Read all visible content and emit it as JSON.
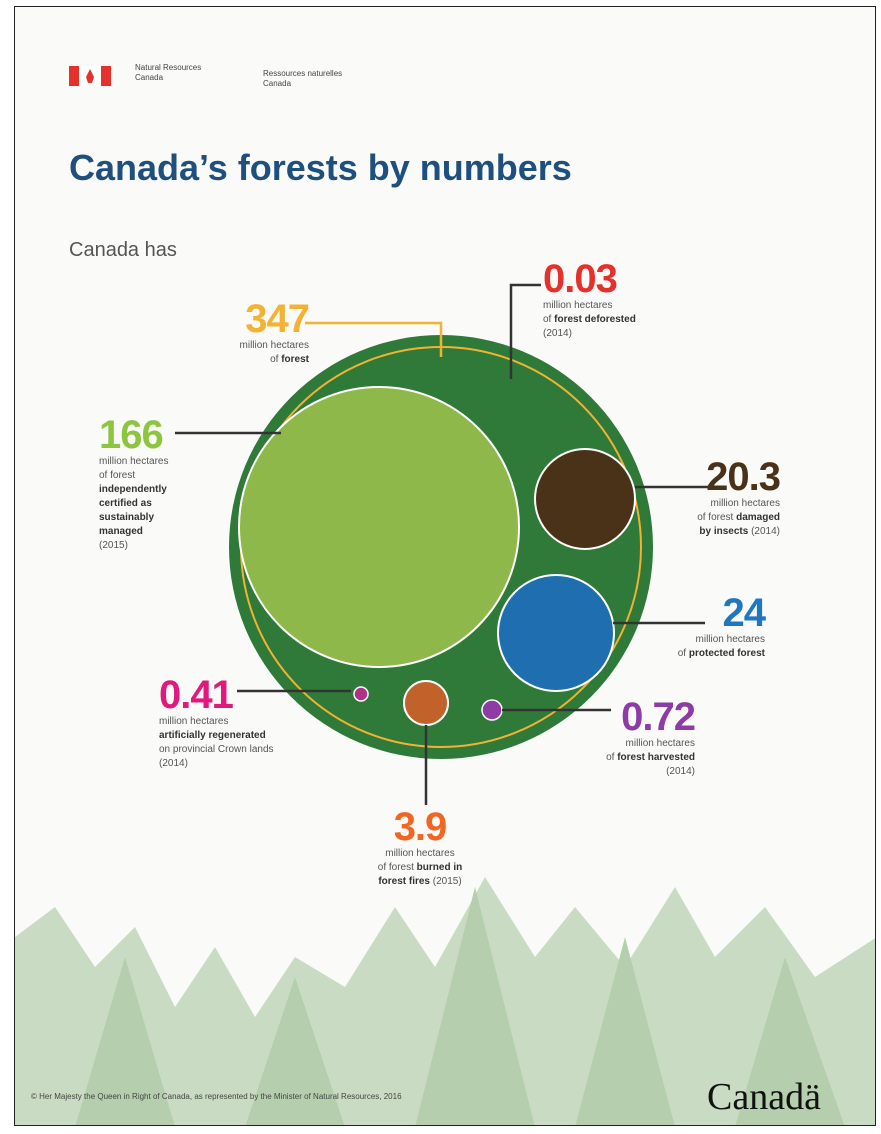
{
  "header": {
    "dept_en": [
      "Natural Resources",
      "Canada"
    ],
    "dept_fr": [
      "Ressources naturelles",
      "Canada"
    ]
  },
  "title": "Canada’s forests by numbers",
  "intro": "Canada has",
  "stats": [
    {
      "value": 347,
      "color": "#f2b233",
      "lines": [
        [
          {
            "text": "million hectares",
            "bold": false
          }
        ],
        [
          {
            "text": "of ",
            "bold": false
          },
          {
            "text": "forest",
            "bold": true
          }
        ]
      ]
    },
    {
      "value": 0.03,
      "color": "#e4312b",
      "lines": [
        [
          {
            "text": "million hectares",
            "bold": false
          }
        ],
        [
          {
            "text": "of ",
            "bold": false
          },
          {
            "text": "forest deforested",
            "bold": true
          }
        ],
        [
          {
            "text": "(2014)",
            "bold": false
          }
        ]
      ]
    },
    {
      "value": 166,
      "color": "#8cc63f",
      "lines": [
        [
          {
            "text": "million hectares",
            "bold": false
          }
        ],
        [
          {
            "text": "of forest",
            "bold": false
          }
        ],
        [
          {
            "text": "independently",
            "bold": true
          }
        ],
        [
          {
            "text": "certified as",
            "bold": true
          }
        ],
        [
          {
            "text": "sustainably",
            "bold": true
          }
        ],
        [
          {
            "text": "managed",
            "bold": true
          }
        ],
        [
          {
            "text": "(2015)",
            "bold": false
          }
        ]
      ]
    },
    {
      "value": 20.3,
      "color": "#4a3218",
      "lines": [
        [
          {
            "text": "million hectares",
            "bold": false
          }
        ],
        [
          {
            "text": "of forest ",
            "bold": false
          },
          {
            "text": "damaged",
            "bold": true
          }
        ],
        [
          {
            "text": "by insects",
            "bold": true
          },
          {
            "text": " (2014)",
            "bold": false
          }
        ]
      ]
    },
    {
      "value": 24,
      "color": "#1f77c0",
      "lines": [
        [
          {
            "text": "million hectares",
            "bold": false
          }
        ],
        [
          {
            "text": "of ",
            "bold": false
          },
          {
            "text": "protected forest",
            "bold": true
          }
        ]
      ]
    },
    {
      "value": 0.41,
      "color": "#e0197d",
      "lines": [
        [
          {
            "text": "million hectares",
            "bold": false
          }
        ],
        [
          {
            "text": "artificially regenerated",
            "bold": true
          }
        ],
        [
          {
            "text": "on provincial Crown lands",
            "bold": false
          }
        ],
        [
          {
            "text": "(2014)",
            "bold": false
          }
        ]
      ]
    },
    {
      "value": 0.72,
      "color": "#8e3ba6",
      "lines": [
        [
          {
            "text": "million hectares",
            "bold": false
          }
        ],
        [
          {
            "text": "of ",
            "bold": false
          },
          {
            "text": "forest harvested",
            "bold": true
          }
        ],
        [
          {
            "text": "(2014)",
            "bold": false
          }
        ]
      ]
    },
    {
      "value": 3.9,
      "color": "#f26522",
      "lines": [
        [
          {
            "text": "million hectares",
            "bold": false
          }
        ],
        [
          {
            "text": "of forest ",
            "bold": false
          },
          {
            "text": "burned in",
            "bold": true
          }
        ],
        [
          {
            "text": "forest fires",
            "bold": true
          },
          {
            "text": " (2015)",
            "bold": false
          }
        ]
      ]
    }
  ],
  "footer": {
    "copyright": "© Her Majesty the Queen in Right of Canada, as represented by the Minister of Natural Resources, 2016",
    "wordmark": "Canadä"
  }
}
